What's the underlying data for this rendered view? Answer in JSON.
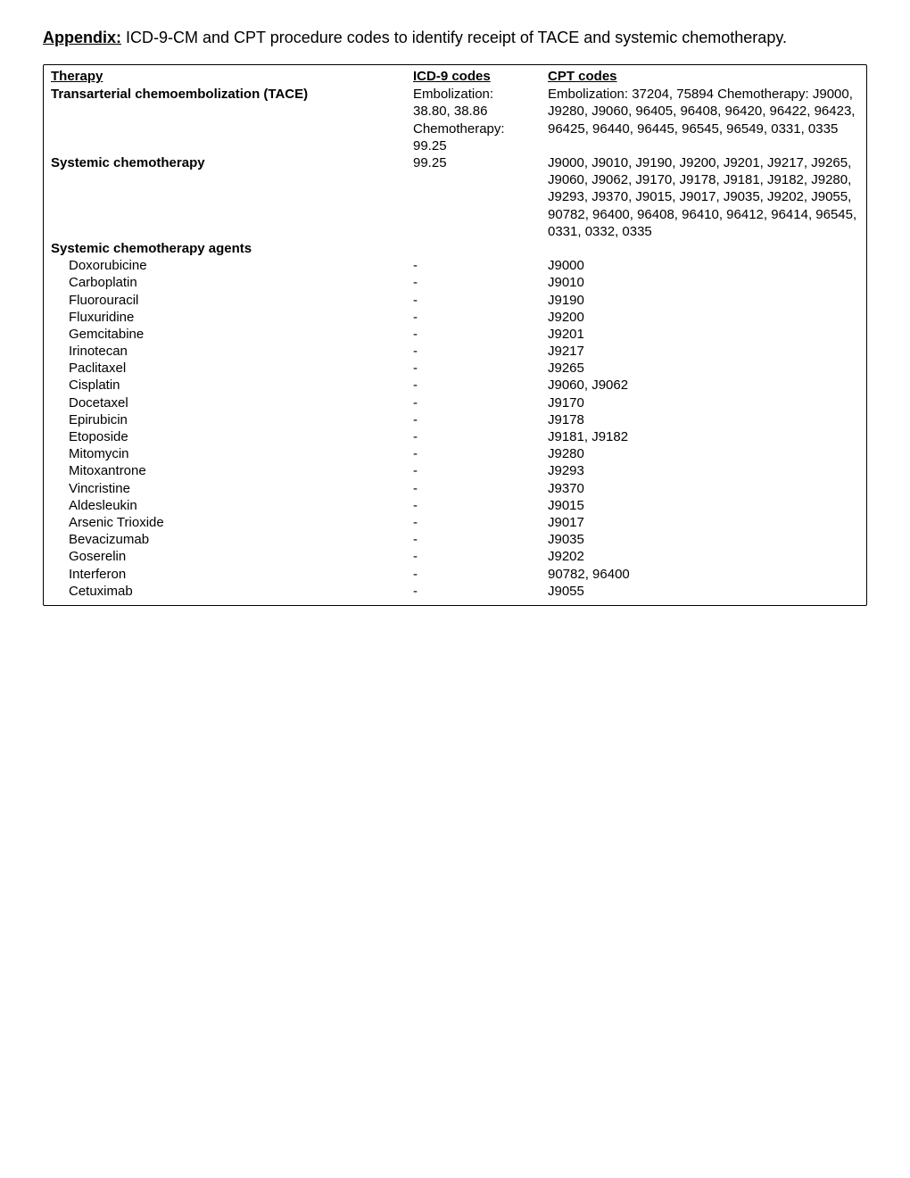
{
  "title": {
    "label": "Appendix:",
    "text": " ICD-9-CM and CPT procedure codes to identify receipt of TACE and systemic chemotherapy."
  },
  "headers": {
    "therapy": "Therapy",
    "icd": "ICD-9 codes",
    "cpt": "CPT codes"
  },
  "rows": [
    {
      "therapy": "Transarterial chemoembolization (TACE)",
      "bold": true,
      "indent": false,
      "icd": "Embolization: 38.80, 38.86 Chemotherapy: 99.25",
      "cpt": "Embolization: 37204, 75894 Chemotherapy: J9000, J9280, J9060, 96405, 96408, 96420, 96422, 96423, 96425, 96440, 96445, 96545, 96549, 0331, 0335"
    },
    {
      "therapy": "Systemic chemotherapy",
      "bold": true,
      "indent": false,
      "icd": "99.25",
      "cpt": "J9000, J9010, J9190, J9200, J9201, J9217, J9265, J9060, J9062, J9170, J9178, J9181, J9182, J9280, J9293, J9370, J9015, J9017, J9035, J9202, J9055, 90782, 96400, 96408, 96410, 96412, 96414, 96545, 0331, 0332, 0335"
    },
    {
      "therapy": "Systemic chemotherapy agents",
      "bold": true,
      "indent": false,
      "icd": "",
      "cpt": ""
    },
    {
      "therapy": "Doxorubicine",
      "bold": false,
      "indent": true,
      "icd": "-",
      "cpt": "J9000"
    },
    {
      "therapy": "Carboplatin",
      "bold": false,
      "indent": true,
      "icd": "-",
      "cpt": "J9010"
    },
    {
      "therapy": "Fluorouracil",
      "bold": false,
      "indent": true,
      "icd": "-",
      "cpt": "J9190"
    },
    {
      "therapy": "Fluxuridine",
      "bold": false,
      "indent": true,
      "icd": "-",
      "cpt": "J9200"
    },
    {
      "therapy": "Gemcitabine",
      "bold": false,
      "indent": true,
      "icd": "-",
      "cpt": "J9201"
    },
    {
      "therapy": "Irinotecan",
      "bold": false,
      "indent": true,
      "icd": "-",
      "cpt": "J9217"
    },
    {
      "therapy": "Paclitaxel",
      "bold": false,
      "indent": true,
      "icd": "-",
      "cpt": "J9265"
    },
    {
      "therapy": "Cisplatin",
      "bold": false,
      "indent": true,
      "icd": "-",
      "cpt": "J9060, J9062"
    },
    {
      "therapy": "Docetaxel",
      "bold": false,
      "indent": true,
      "icd": "-",
      "cpt": "J9170"
    },
    {
      "therapy": "Epirubicin",
      "bold": false,
      "indent": true,
      "icd": "-",
      "cpt": "J9178"
    },
    {
      "therapy": "Etoposide",
      "bold": false,
      "indent": true,
      "icd": "-",
      "cpt": "J9181, J9182"
    },
    {
      "therapy": "Mitomycin",
      "bold": false,
      "indent": true,
      "icd": "-",
      "cpt": "J9280"
    },
    {
      "therapy": "Mitoxantrone",
      "bold": false,
      "indent": true,
      "icd": "-",
      "cpt": "J9293"
    },
    {
      "therapy": "Vincristine",
      "bold": false,
      "indent": true,
      "icd": "-",
      "cpt": "J9370"
    },
    {
      "therapy": "Aldesleukin",
      "bold": false,
      "indent": true,
      "icd": "-",
      "cpt": "J9015"
    },
    {
      "therapy": "Arsenic Trioxide",
      "bold": false,
      "indent": true,
      "icd": "-",
      "cpt": "J9017"
    },
    {
      "therapy": "Bevacizumab",
      "bold": false,
      "indent": true,
      "icd": "-",
      "cpt": "J9035"
    },
    {
      "therapy": "Goserelin",
      "bold": false,
      "indent": true,
      "icd": "-",
      "cpt": "J9202"
    },
    {
      "therapy": "Interferon",
      "bold": false,
      "indent": true,
      "icd": "-",
      "cpt": "90782, 96400"
    },
    {
      "therapy": "Cetuximab",
      "bold": false,
      "indent": true,
      "icd": "-",
      "cpt": "J9055"
    }
  ]
}
